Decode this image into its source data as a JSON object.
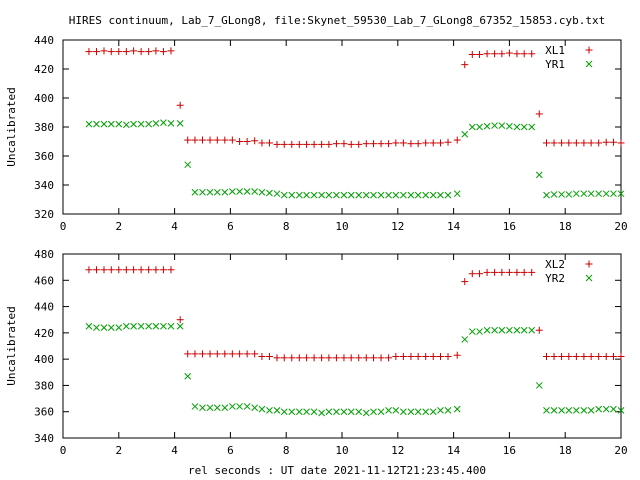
{
  "title": "HIRES continuum, Lab_7_GLong8, file:Skynet_59530_Lab_7_GLong8_67352_15853.cyb.txt",
  "xlabel": "rel seconds : UT date 2021-11-12T21:23:45.400",
  "colors": {
    "red": "#cc0000",
    "green": "#00a000",
    "frame": "#000000"
  },
  "chart_data": [
    {
      "type": "scatter",
      "ylabel": "Uncalibrated",
      "xlim": [
        0,
        20
      ],
      "ylim": [
        320,
        440
      ],
      "xticks": [
        0,
        2,
        4,
        6,
        8,
        10,
        12,
        14,
        16,
        18,
        20
      ],
      "yticks": [
        320,
        340,
        360,
        380,
        400,
        420,
        440
      ],
      "legend": "top-right",
      "series": [
        {
          "name": "XL1",
          "marker": "plus",
          "color": "#cc0000",
          "x": [
            0.93,
            1.2,
            1.47,
            1.73,
            2.0,
            2.27,
            2.53,
            2.8,
            3.07,
            3.33,
            3.6,
            3.87,
            4.2,
            4.47,
            4.73,
            5.0,
            5.27,
            5.53,
            5.8,
            6.07,
            6.33,
            6.6,
            6.87,
            7.13,
            7.4,
            7.67,
            7.93,
            8.2,
            8.47,
            8.73,
            9.0,
            9.27,
            9.53,
            9.8,
            10.07,
            10.33,
            10.6,
            10.87,
            11.13,
            11.4,
            11.67,
            11.93,
            12.2,
            12.47,
            12.73,
            13.0,
            13.27,
            13.53,
            13.8,
            14.13,
            14.4,
            14.67,
            14.93,
            15.2,
            15.47,
            15.73,
            16.0,
            16.27,
            16.53,
            16.8,
            17.07,
            17.33,
            17.6,
            17.87,
            18.13,
            18.4,
            18.67,
            18.93,
            19.2,
            19.47,
            19.73,
            20.0
          ],
          "y": [
            432,
            432,
            432.5,
            432,
            432,
            432,
            432.5,
            432,
            432,
            432.5,
            432,
            432.5,
            395,
            371,
            371,
            371,
            371,
            371,
            371,
            371,
            370,
            370,
            370.5,
            369,
            369,
            368,
            368,
            368,
            368,
            368,
            368,
            368,
            368,
            368.5,
            368.5,
            368,
            368,
            368.5,
            368.5,
            368.5,
            368.5,
            369,
            369,
            368.5,
            368.5,
            369,
            369,
            369,
            369.5,
            371,
            423,
            430,
            430,
            430.5,
            430.5,
            430.5,
            431,
            430.5,
            430.5,
            430.5,
            389,
            369,
            369,
            369,
            369,
            369,
            369,
            369,
            369,
            369.5,
            369.5,
            369
          ]
        },
        {
          "name": "YR1",
          "marker": "cross",
          "color": "#00a000",
          "x": [
            0.93,
            1.2,
            1.47,
            1.73,
            2.0,
            2.27,
            2.53,
            2.8,
            3.07,
            3.33,
            3.6,
            3.87,
            4.2,
            4.47,
            4.73,
            5.0,
            5.27,
            5.53,
            5.8,
            6.07,
            6.33,
            6.6,
            6.87,
            7.13,
            7.4,
            7.67,
            7.93,
            8.2,
            8.47,
            8.73,
            9.0,
            9.27,
            9.53,
            9.8,
            10.07,
            10.33,
            10.6,
            10.87,
            11.13,
            11.4,
            11.67,
            11.93,
            12.2,
            12.47,
            12.73,
            13.0,
            13.27,
            13.53,
            13.8,
            14.13,
            14.4,
            14.67,
            14.93,
            15.2,
            15.47,
            15.73,
            16.0,
            16.27,
            16.53,
            16.8,
            17.07,
            17.33,
            17.6,
            17.87,
            18.13,
            18.4,
            18.67,
            18.93,
            19.2,
            19.47,
            19.73,
            20.0
          ],
          "y": [
            382,
            382,
            382,
            382,
            382,
            381.5,
            382,
            382,
            382,
            382.5,
            383,
            382.5,
            382.5,
            354,
            335,
            335,
            335,
            335,
            335,
            335.5,
            335.5,
            335.5,
            335.5,
            335,
            334.5,
            334,
            333,
            333,
            333,
            333,
            333,
            333,
            333,
            333,
            333,
            333,
            333,
            333,
            333,
            333,
            333,
            333,
            333,
            333,
            333,
            333,
            333,
            333,
            333,
            334,
            375,
            380,
            380,
            380.5,
            381,
            381,
            380.5,
            380,
            380,
            380,
            347,
            333,
            333.5,
            333.5,
            333.5,
            334,
            334,
            334,
            334,
            334,
            334,
            334
          ]
        }
      ]
    },
    {
      "type": "scatter",
      "ylabel": "Uncalibrated",
      "xlim": [
        0,
        20
      ],
      "ylim": [
        340,
        480
      ],
      "xticks": [
        0,
        2,
        4,
        6,
        8,
        10,
        12,
        14,
        16,
        18,
        20
      ],
      "yticks": [
        340,
        360,
        380,
        400,
        420,
        440,
        460,
        480
      ],
      "legend": "top-right",
      "series": [
        {
          "name": "XL2",
          "marker": "plus",
          "color": "#cc0000",
          "x": [
            0.93,
            1.2,
            1.47,
            1.73,
            2.0,
            2.27,
            2.53,
            2.8,
            3.07,
            3.33,
            3.6,
            3.87,
            4.2,
            4.47,
            4.73,
            5.0,
            5.27,
            5.53,
            5.8,
            6.07,
            6.33,
            6.6,
            6.87,
            7.13,
            7.4,
            7.67,
            7.93,
            8.2,
            8.47,
            8.73,
            9.0,
            9.27,
            9.53,
            9.8,
            10.07,
            10.33,
            10.6,
            10.87,
            11.13,
            11.4,
            11.67,
            11.93,
            12.2,
            12.47,
            12.73,
            13.0,
            13.27,
            13.53,
            13.8,
            14.13,
            14.4,
            14.67,
            14.93,
            15.2,
            15.47,
            15.73,
            16.0,
            16.27,
            16.53,
            16.8,
            17.07,
            17.33,
            17.6,
            17.87,
            18.13,
            18.4,
            18.67,
            18.93,
            19.2,
            19.47,
            19.73,
            20.0
          ],
          "y": [
            468,
            468,
            468,
            468,
            468,
            468,
            468,
            468,
            468,
            468,
            468,
            468,
            430,
            404,
            404,
            404,
            404,
            404,
            404,
            404,
            404,
            404,
            404,
            402,
            402,
            401,
            401,
            401,
            401,
            401,
            401,
            401,
            401,
            401,
            401,
            401,
            401,
            401,
            401,
            401,
            401,
            402,
            402,
            402,
            402,
            402,
            402,
            402,
            402,
            403,
            459,
            465,
            465,
            466,
            466,
            466,
            466,
            466,
            466,
            466,
            422,
            402,
            402,
            402,
            402,
            402,
            402,
            402,
            402,
            402,
            402,
            402
          ]
        },
        {
          "name": "YR2",
          "marker": "cross",
          "color": "#00a000",
          "x": [
            0.93,
            1.2,
            1.47,
            1.73,
            2.0,
            2.27,
            2.53,
            2.8,
            3.07,
            3.33,
            3.6,
            3.87,
            4.2,
            4.47,
            4.73,
            5.0,
            5.27,
            5.53,
            5.8,
            6.07,
            6.33,
            6.6,
            6.87,
            7.13,
            7.4,
            7.67,
            7.93,
            8.2,
            8.47,
            8.73,
            9.0,
            9.27,
            9.53,
            9.8,
            10.07,
            10.33,
            10.6,
            10.87,
            11.13,
            11.4,
            11.67,
            11.93,
            12.2,
            12.47,
            12.73,
            13.0,
            13.27,
            13.53,
            13.8,
            14.13,
            14.4,
            14.67,
            14.93,
            15.2,
            15.47,
            15.73,
            16.0,
            16.27,
            16.53,
            16.8,
            17.07,
            17.33,
            17.6,
            17.87,
            18.13,
            18.4,
            18.67,
            18.93,
            19.2,
            19.47,
            19.73,
            20.0
          ],
          "y": [
            425,
            424,
            424,
            424,
            424,
            425,
            425,
            425,
            425,
            425,
            425,
            425,
            425,
            387,
            364,
            363,
            363,
            363,
            363,
            364,
            364,
            364,
            363,
            362,
            361,
            361,
            360,
            360,
            360,
            360,
            360,
            359,
            360,
            360,
            360,
            360,
            360,
            359,
            360,
            360,
            361,
            361,
            360,
            360,
            360,
            360,
            360,
            361,
            361,
            362,
            415,
            421,
            421,
            422,
            422,
            422,
            422,
            422,
            422,
            422,
            380,
            361,
            361,
            361,
            361,
            361,
            361,
            361,
            362,
            362,
            362,
            361
          ]
        }
      ]
    }
  ]
}
